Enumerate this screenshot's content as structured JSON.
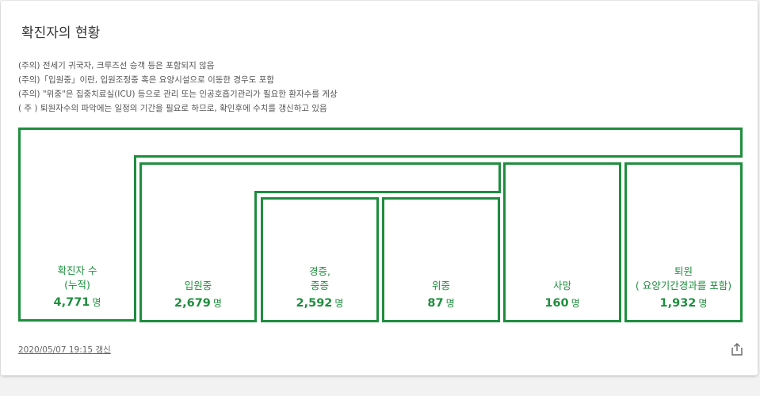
{
  "card": {
    "title": "확진자의 현황",
    "notes": [
      "(주의) 전세기 귀국자, 크루즈선 승객 등은 포함되지 않음",
      "(주의)「입원중」이란, 입원조정중 혹은 요양시설으로 이동한 경우도 포함",
      "(주의) \"위중\"은 집중치료실(ICU) 등으로 관리 또는 인공호흡기관리가 필요한 환자수를 게상",
      "( 주 ) 퇴원자수의 파악에는 일정의 기간을 필요로 하므로, 확인후에 수치를 갱신하고 있음"
    ],
    "stats": {
      "confirmed": {
        "label_line1": "확진자 수",
        "label_line2": "(누적)",
        "value": "4,771",
        "unit": "명"
      },
      "hospitalized": {
        "label_line1": "입원중",
        "value": "2,679",
        "unit": "명"
      },
      "mild": {
        "label_line1": "경증,",
        "label_line2": "중증",
        "value": "2,592",
        "unit": "명"
      },
      "severe": {
        "label_line1": "위중",
        "value": "87",
        "unit": "명"
      },
      "deaths": {
        "label_line1": "사망",
        "value": "160",
        "unit": "명"
      },
      "discharged": {
        "label_line1": "퇴원",
        "label_line2": "( 요양기간경과를 포함)",
        "value": "1,932",
        "unit": "명"
      }
    },
    "updated": "2020/05/07 19:15 갱신",
    "icons": {
      "share": "share-icon"
    },
    "colors": {
      "accent": "#1e8e3e"
    }
  }
}
